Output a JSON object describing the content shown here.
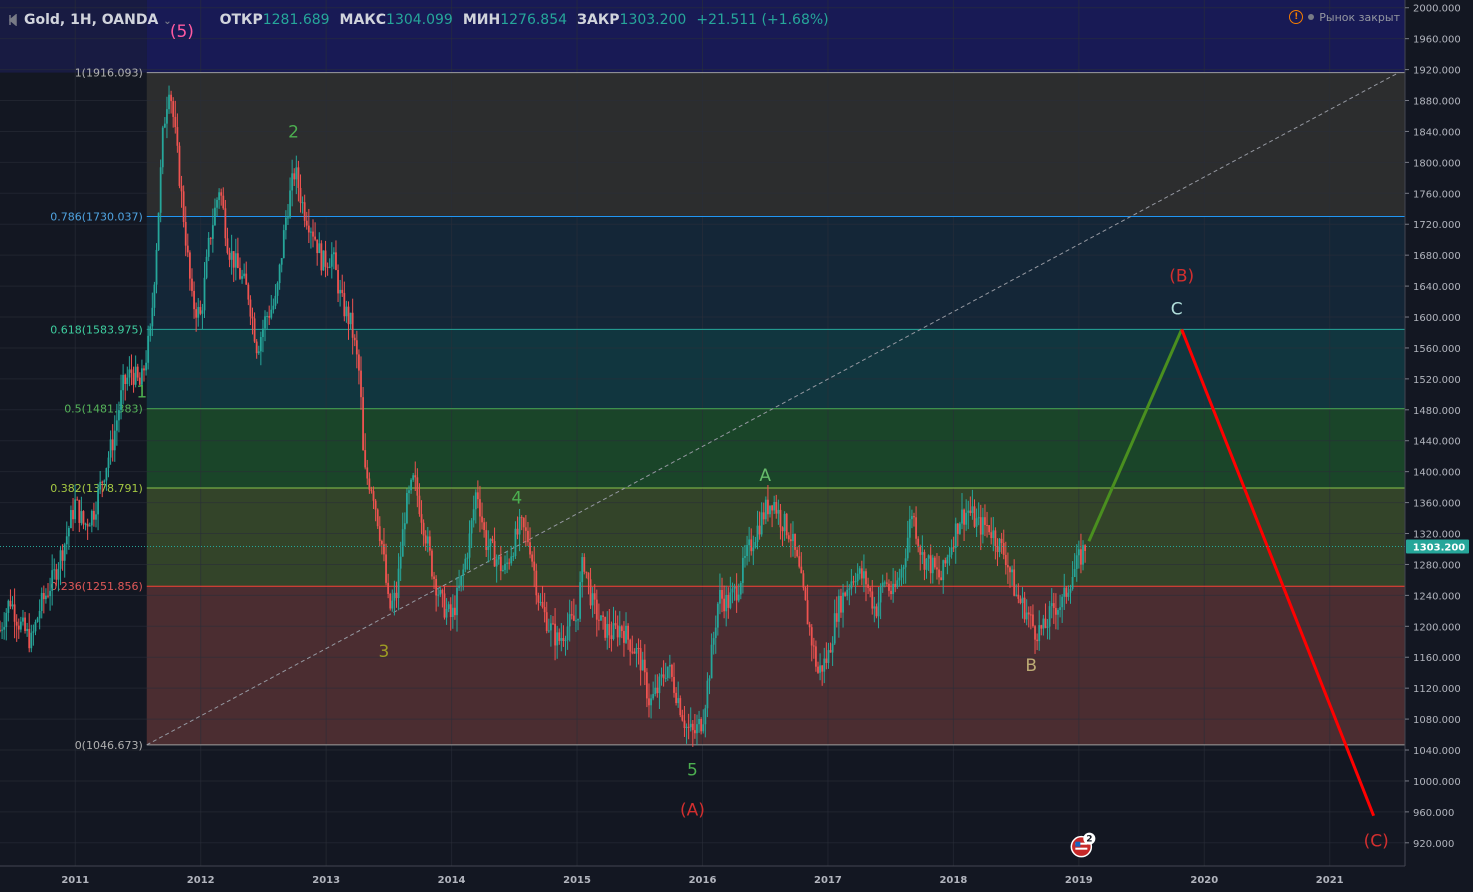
{
  "header": {
    "symbol": "Gold, 1H, OANDA",
    "open_label": "ОТКР",
    "open_value": "1281.689",
    "high_label": "МАКС",
    "high_value": "1304.099",
    "low_label": "МИН",
    "low_value": "1276.854",
    "close_label": "ЗАКР",
    "close_value": "1303.200",
    "change": "+21.511 (+1.68%)",
    "market_status": "Рынок закрыт"
  },
  "colors": {
    "background": "#131722",
    "up_candle": "#26a69a",
    "down_candle": "#ef5350",
    "impulse_up_line": "#4a8f1f",
    "impulse_down_line": "#ff0000"
  },
  "chart_data": {
    "type": "candlestick",
    "y_axis": {
      "min": 890,
      "max": 2010,
      "step": 40,
      "ticks": [
        "2000.000",
        "1960.000",
        "1920.000",
        "1880.000",
        "1840.000",
        "1800.000",
        "1760.000",
        "1720.000",
        "1680.000",
        "1640.000",
        "1600.000",
        "1560.000",
        "1520.000",
        "1480.000",
        "1440.000",
        "1400.000",
        "1360.000",
        "1320.000",
        "1280.000",
        "1240.000",
        "1200.000",
        "1160.000",
        "1120.000",
        "1080.000",
        "1040.000",
        "1000.000",
        "960.000",
        "920.000"
      ]
    },
    "x_axis": {
      "min": 2010.4,
      "max": 2021.6,
      "ticks": [
        {
          "label": "2011",
          "value": 2011
        },
        {
          "label": "2012",
          "value": 2012
        },
        {
          "label": "2013",
          "value": 2013
        },
        {
          "label": "2014",
          "value": 2014
        },
        {
          "label": "2015",
          "value": 2015
        },
        {
          "label": "2016",
          "value": 2016
        },
        {
          "label": "2017",
          "value": 2017
        },
        {
          "label": "2018",
          "value": 2018
        },
        {
          "label": "2019",
          "value": 2019
        },
        {
          "label": "2020",
          "value": 2020
        },
        {
          "label": "2021",
          "value": 2021
        }
      ]
    },
    "last_price": {
      "value": 1303.2,
      "label": "1303.200"
    },
    "price_path": [
      [
        2010.4,
        1195
      ],
      [
        2010.48,
        1235
      ],
      [
        2010.55,
        1205
      ],
      [
        2010.65,
        1180
      ],
      [
        2010.72,
        1225
      ],
      [
        2010.82,
        1260
      ],
      [
        2010.92,
        1310
      ],
      [
        2011.0,
        1360
      ],
      [
        2011.07,
        1330
      ],
      [
        2011.15,
        1350
      ],
      [
        2011.23,
        1400
      ],
      [
        2011.3,
        1440
      ],
      [
        2011.38,
        1510
      ],
      [
        2011.45,
        1530
      ],
      [
        2011.52,
        1510
      ],
      [
        2011.6,
        1580
      ],
      [
        2011.65,
        1700
      ],
      [
        2011.7,
        1840
      ],
      [
        2011.75,
        1905
      ],
      [
        2011.8,
        1830
      ],
      [
        2011.87,
        1720
      ],
      [
        2011.93,
        1620
      ],
      [
        2012.0,
        1600
      ],
      [
        2012.07,
        1700
      ],
      [
        2012.15,
        1770
      ],
      [
        2012.22,
        1690
      ],
      [
        2012.3,
        1660
      ],
      [
        2012.38,
        1630
      ],
      [
        2012.45,
        1560
      ],
      [
        2012.52,
        1600
      ],
      [
        2012.6,
        1620
      ],
      [
        2012.68,
        1730
      ],
      [
        2012.75,
        1790
      ],
      [
        2012.82,
        1740
      ],
      [
        2012.9,
        1710
      ],
      [
        2012.97,
        1670
      ],
      [
        2013.05,
        1680
      ],
      [
        2013.12,
        1620
      ],
      [
        2013.2,
        1590
      ],
      [
        2013.27,
        1520
      ],
      [
        2013.3,
        1400
      ],
      [
        2013.37,
        1380
      ],
      [
        2013.45,
        1300
      ],
      [
        2013.5,
        1220
      ],
      [
        2013.56,
        1240
      ],
      [
        2013.63,
        1350
      ],
      [
        2013.7,
        1390
      ],
      [
        2013.78,
        1330
      ],
      [
        2013.85,
        1270
      ],
      [
        2013.92,
        1230
      ],
      [
        2014.0,
        1210
      ],
      [
        2014.08,
        1260
      ],
      [
        2014.15,
        1320
      ],
      [
        2014.2,
        1380
      ],
      [
        2014.27,
        1310
      ],
      [
        2014.35,
        1290
      ],
      [
        2014.42,
        1270
      ],
      [
        2014.48,
        1300
      ],
      [
        2014.55,
        1330
      ],
      [
        2014.62,
        1310
      ],
      [
        2014.7,
        1230
      ],
      [
        2014.78,
        1200
      ],
      [
        2014.85,
        1180
      ],
      [
        2014.92,
        1200
      ],
      [
        2015.0,
        1210
      ],
      [
        2015.05,
        1290
      ],
      [
        2015.12,
        1230
      ],
      [
        2015.2,
        1200
      ],
      [
        2015.28,
        1190
      ],
      [
        2015.35,
        1200
      ],
      [
        2015.42,
        1180
      ],
      [
        2015.5,
        1160
      ],
      [
        2015.58,
        1100
      ],
      [
        2015.65,
        1120
      ],
      [
        2015.72,
        1150
      ],
      [
        2015.8,
        1110
      ],
      [
        2015.87,
        1070
      ],
      [
        2015.93,
        1060
      ],
      [
        2016.0,
        1080
      ],
      [
        2016.07,
        1160
      ],
      [
        2016.13,
        1240
      ],
      [
        2016.2,
        1230
      ],
      [
        2016.28,
        1250
      ],
      [
        2016.35,
        1290
      ],
      [
        2016.42,
        1320
      ],
      [
        2016.5,
        1350
      ],
      [
        2016.56,
        1365
      ],
      [
        2016.62,
        1340
      ],
      [
        2016.7,
        1320
      ],
      [
        2016.77,
        1270
      ],
      [
        2016.85,
        1200
      ],
      [
        2016.92,
        1140
      ],
      [
        2017.0,
        1160
      ],
      [
        2017.07,
        1220
      ],
      [
        2017.15,
        1250
      ],
      [
        2017.22,
        1270
      ],
      [
        2017.3,
        1260
      ],
      [
        2017.38,
        1220
      ],
      [
        2017.45,
        1260
      ],
      [
        2017.52,
        1240
      ],
      [
        2017.6,
        1280
      ],
      [
        2017.67,
        1350
      ],
      [
        2017.75,
        1290
      ],
      [
        2017.82,
        1280
      ],
      [
        2017.9,
        1260
      ],
      [
        2017.97,
        1300
      ],
      [
        2018.05,
        1340
      ],
      [
        2018.12,
        1350
      ],
      [
        2018.2,
        1330
      ],
      [
        2018.28,
        1330
      ],
      [
        2018.35,
        1310
      ],
      [
        2018.42,
        1290
      ],
      [
        2018.5,
        1240
      ],
      [
        2018.58,
        1220
      ],
      [
        2018.65,
        1195
      ],
      [
        2018.72,
        1195
      ],
      [
        2018.8,
        1225
      ],
      [
        2018.87,
        1230
      ],
      [
        2018.93,
        1260
      ],
      [
        2019.0,
        1285
      ],
      [
        2019.05,
        1303
      ]
    ],
    "fibonacci": {
      "start_x": 2011.57,
      "end_x": 2021.6,
      "levels": [
        {
          "label": "1(1916.093)",
          "price": 1916.093
        },
        {
          "label": "0.786(1730.037)",
          "price": 1730.037
        },
        {
          "label": "0.618(1583.975)",
          "price": 1583.975
        },
        {
          "label": "0.5(1481.383)",
          "price": 1481.383
        },
        {
          "label": "0.382(1378.791)",
          "price": 1378.791
        },
        {
          "label": "0.236(1251.856)",
          "price": 1251.856
        },
        {
          "label": "0(1046.673)",
          "price": 1046.673
        }
      ],
      "trend_line": [
        [
          2011.57,
          1046.673
        ],
        [
          2021.55,
          1916.093
        ]
      ]
    },
    "projection_lines": [
      {
        "name": "up",
        "points": [
          [
            2019.08,
            1310
          ],
          [
            2019.82,
            1583.975
          ]
        ]
      },
      {
        "name": "down",
        "points": [
          [
            2019.82,
            1583.975
          ],
          [
            2021.35,
            955
          ]
        ]
      }
    ],
    "wave_labels": [
      {
        "text": "(5)",
        "x": 2011.85,
        "y": 1962,
        "color": "#ff5aa0"
      },
      {
        "text": "1",
        "x": 2011.53,
        "y": 1496,
        "color": "#4caf50"
      },
      {
        "text": "2",
        "x": 2012.74,
        "y": 1832,
        "color": "#4caf50"
      },
      {
        "text": "3",
        "x": 2013.46,
        "y": 1160,
        "color": "#9e9d24"
      },
      {
        "text": "4",
        "x": 2014.52,
        "y": 1359,
        "color": "#4caf50"
      },
      {
        "text": "5",
        "x": 2015.92,
        "y": 1007,
        "color": "#4caf50"
      },
      {
        "text": "(A)",
        "x": 2015.92,
        "y": 955,
        "color": "#d32f2f"
      },
      {
        "text": "A",
        "x": 2016.5,
        "y": 1388,
        "color": "#66bb6a"
      },
      {
        "text": "B",
        "x": 2018.62,
        "y": 1142,
        "color": "#bcaa74"
      },
      {
        "text": "C",
        "x": 2019.78,
        "y": 1603,
        "color": "#b2dfdb"
      },
      {
        "text": "(B)",
        "x": 2019.82,
        "y": 1646,
        "color": "#d32f2f"
      },
      {
        "text": "(C)",
        "x": 2021.37,
        "y": 915,
        "color": "#d32f2f"
      }
    ],
    "event_marker": {
      "x": 2019.02,
      "y": 915,
      "count": "2"
    }
  }
}
